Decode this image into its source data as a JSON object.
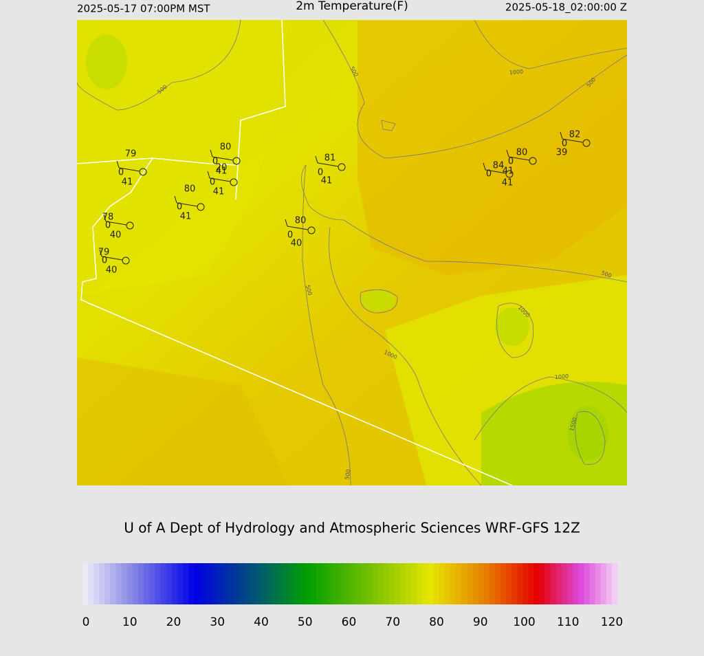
{
  "header": {
    "left": "2025-05-17 07:00PM MST",
    "title": "2m Temperature(F)",
    "right": "2025-05-18_02:00:00 Z"
  },
  "contour_labels": [
    "500",
    "1000",
    "500",
    "500",
    "500",
    "500",
    "1000",
    "1000",
    "1000",
    "1500",
    "500"
  ],
  "stations": [
    {
      "temperature": 79,
      "pressure": 0,
      "dewpoint": 41
    },
    {
      "temperature": 80,
      "pressure": 0,
      "dewpoint": 41
    },
    {
      "temperature": 20,
      "pressure": 0,
      "dewpoint": 41
    },
    {
      "temperature": 80,
      "pressure": 0,
      "dewpoint": 41
    },
    {
      "temperature": 81,
      "pressure": 0,
      "dewpoint": 41
    },
    {
      "temperature": 80,
      "pressure": 0,
      "dewpoint": 40
    },
    {
      "temperature": 78,
      "pressure": 0,
      "dewpoint": 40
    },
    {
      "temperature": 79,
      "pressure": 0,
      "dewpoint": 40
    },
    {
      "temperature": 84,
      "pressure": 0,
      "dewpoint": 41
    },
    {
      "temperature": 80,
      "pressure": 0,
      "dewpoint": 41
    },
    {
      "temperature": 82,
      "pressure": 0,
      "dewpoint": 39
    }
  ],
  "credit": "U of A Dept of Hydrology and Atmospheric Sciences WRF-GFS 12Z",
  "colorbar": {
    "lim": [
      0,
      120
    ],
    "ticks": [
      0,
      10,
      20,
      30,
      40,
      50,
      60,
      70,
      80,
      90,
      100,
      110,
      120
    ]
  }
}
